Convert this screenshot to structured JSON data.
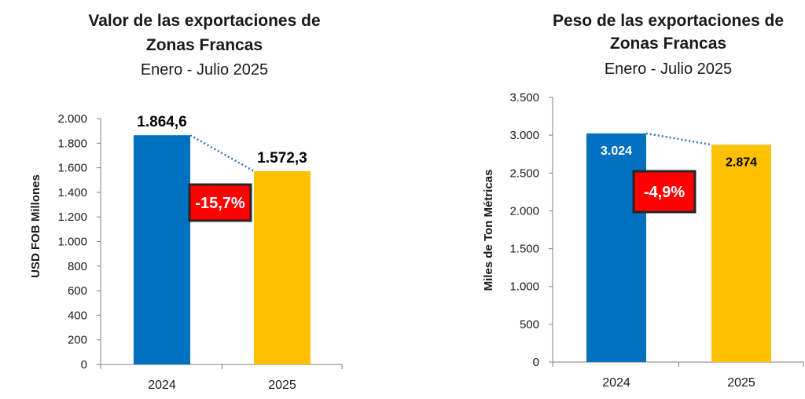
{
  "chart_data": [
    {
      "type": "bar",
      "title_lines": [
        "Valor de las exportaciones de",
        "Zonas Francas"
      ],
      "subtitle": "Enero - Julio 2025",
      "ylabel": "USD FOB Millones",
      "xlabel": "",
      "categories": [
        "2024",
        "2025"
      ],
      "values": [
        1864.6,
        1572.3
      ],
      "value_labels": [
        "1.864,6",
        "1.572,3"
      ],
      "ylim": [
        0,
        2000
      ],
      "yticks": [
        0,
        200,
        400,
        600,
        800,
        1000,
        1200,
        1400,
        1600,
        1800,
        2000
      ],
      "ytick_labels": [
        "0",
        "200",
        "400",
        "600",
        "800",
        "1.000",
        "1.200",
        "1.400",
        "1.600",
        "1.800",
        "2.000"
      ],
      "change_label": "-15,7%",
      "grid": false,
      "colors": [
        "#0070C0",
        "#FFC000"
      ],
      "badge_color": "#FF0000"
    },
    {
      "type": "bar",
      "title_lines": [
        "Peso de las exportaciones de",
        "Zonas Francas"
      ],
      "subtitle": "Enero - Julio 2025",
      "ylabel": "Miles de Ton Métricas",
      "xlabel": "",
      "categories": [
        "2024",
        "2025"
      ],
      "values": [
        3024,
        2874
      ],
      "value_labels": [
        "3.024",
        "2.874"
      ],
      "ylim": [
        0,
        3500
      ],
      "yticks": [
        0,
        500,
        1000,
        1500,
        2000,
        2500,
        3000,
        3500
      ],
      "ytick_labels": [
        "0",
        "500",
        "1.000",
        "1.500",
        "2.000",
        "2.500",
        "3.000",
        "3.500"
      ],
      "change_label": "-4,9%",
      "grid": false,
      "colors": [
        "#0070C0",
        "#FFC000"
      ],
      "badge_color": "#FF0000"
    }
  ]
}
